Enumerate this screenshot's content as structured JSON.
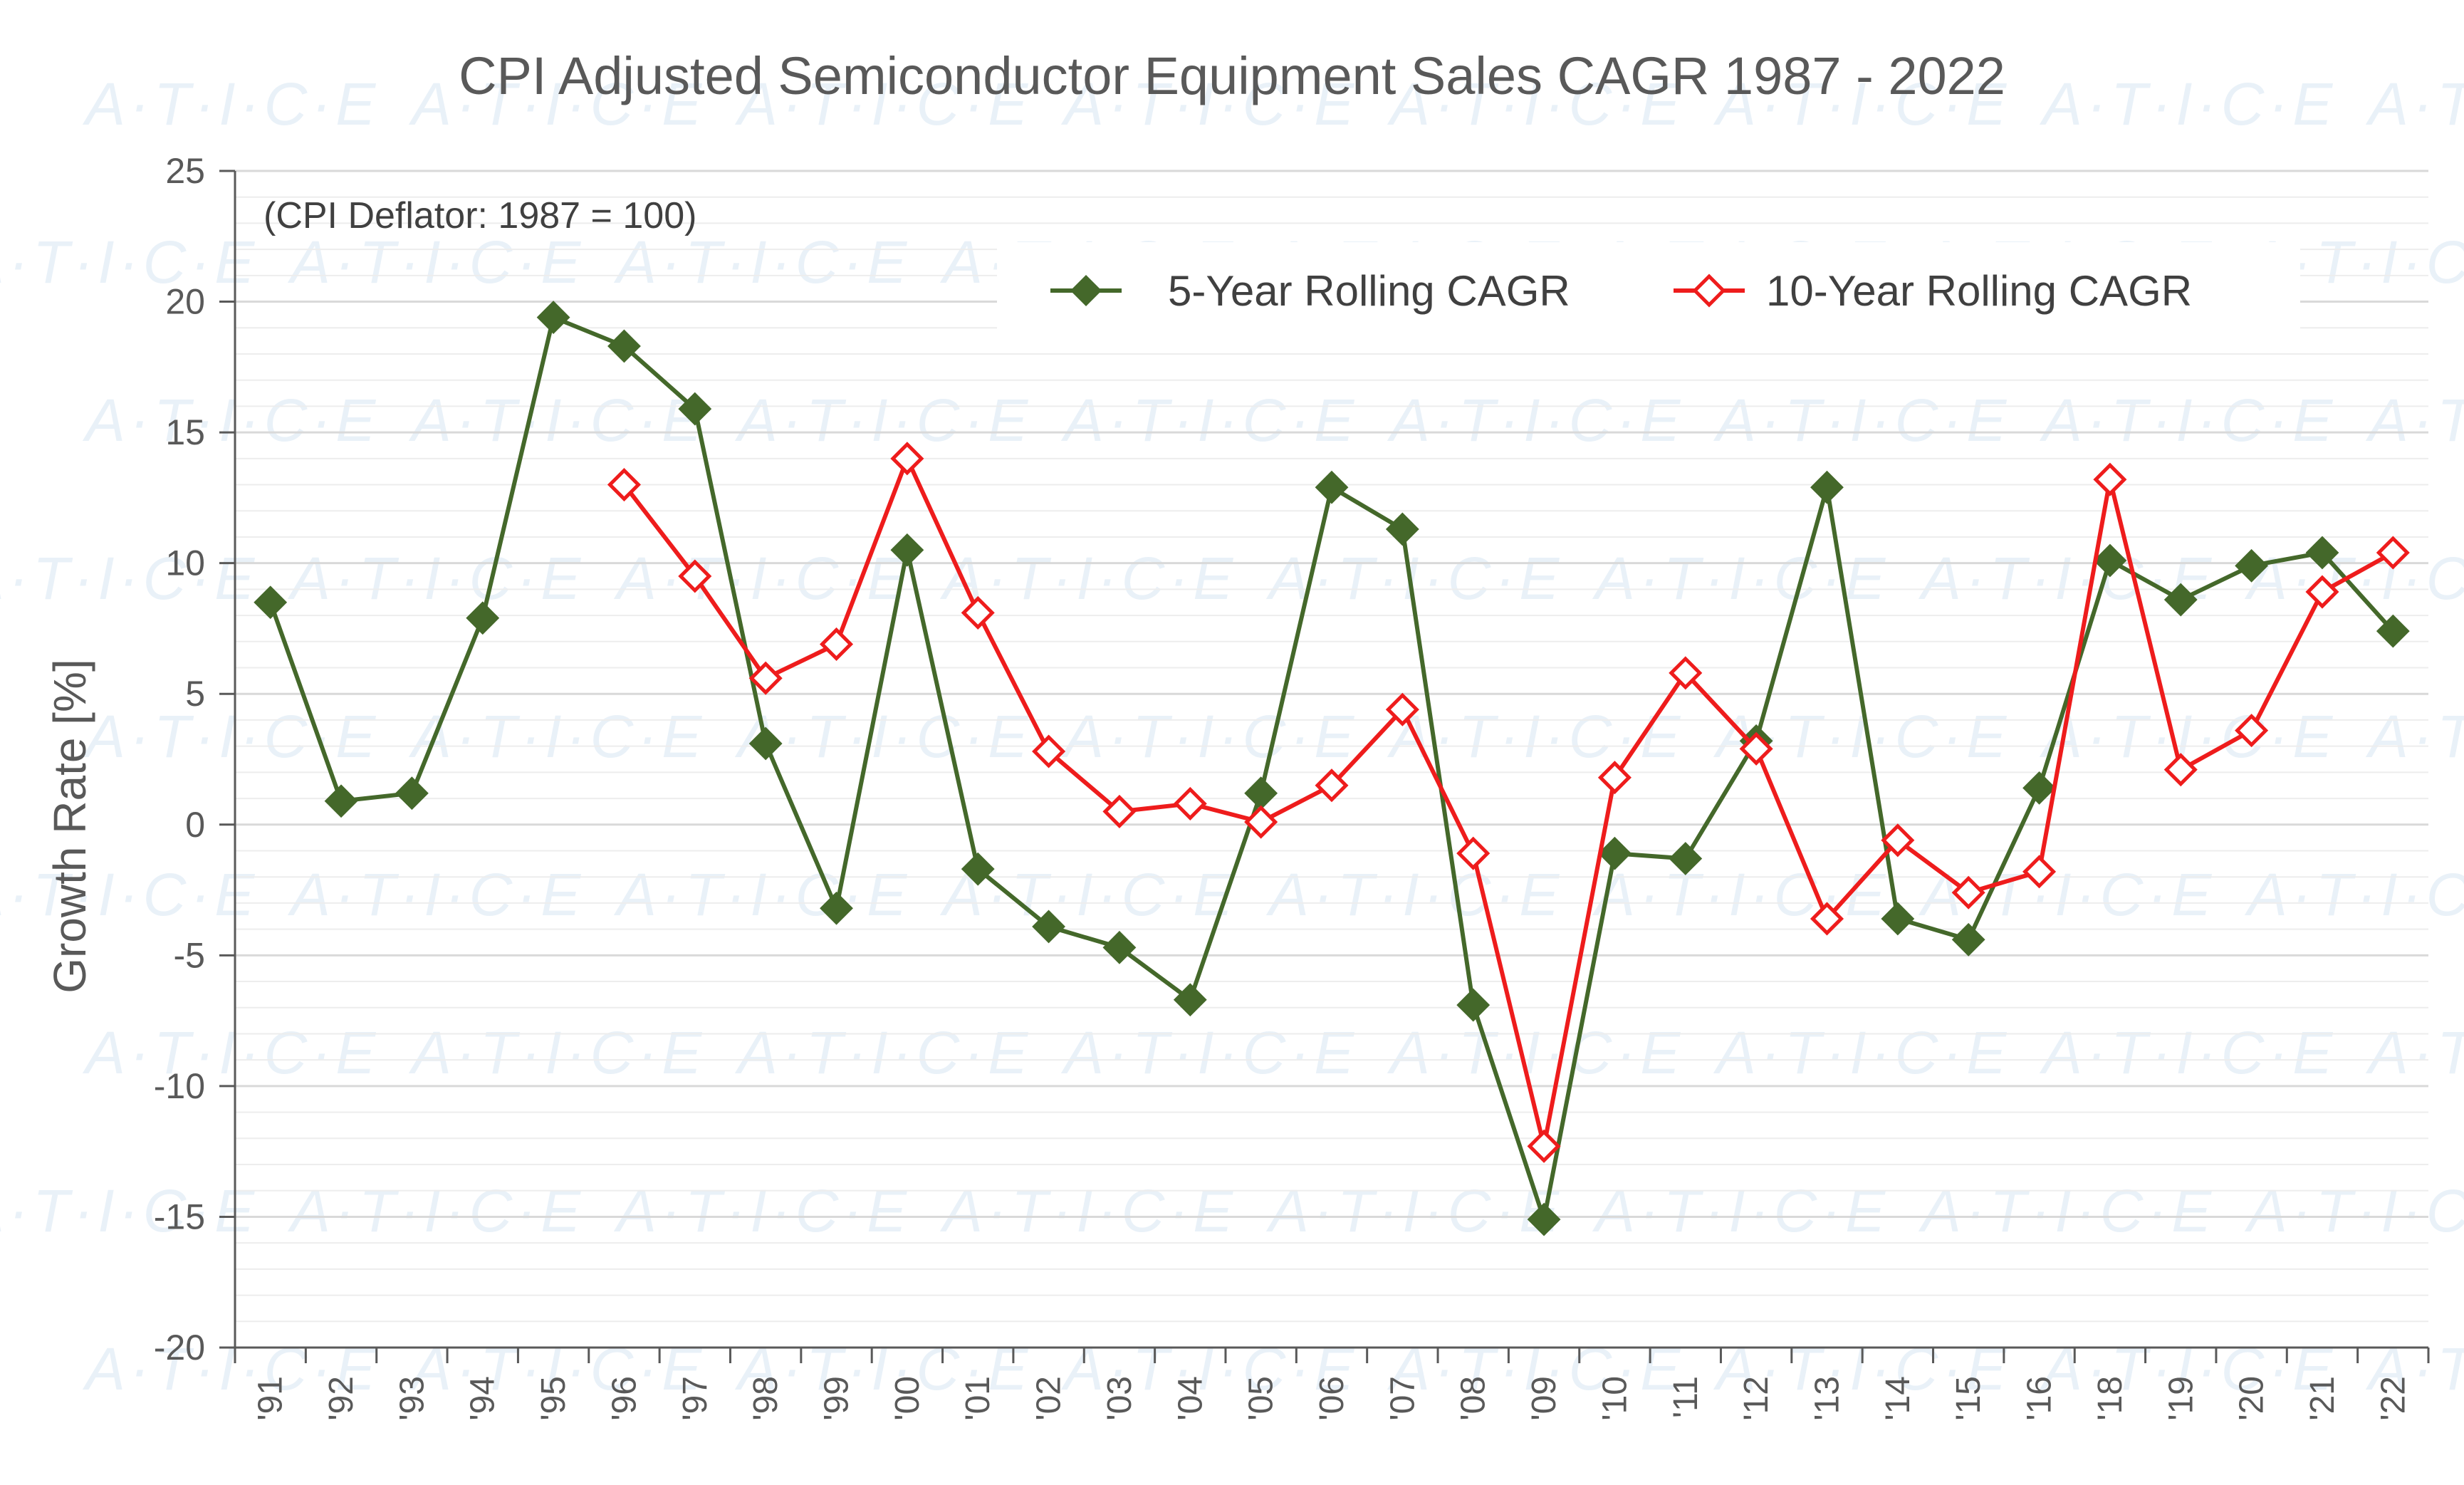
{
  "chart_data": {
    "type": "line",
    "title": "CPI Adjusted Semiconductor Equipment Sales CAGR 1987 - 2022",
    "annotation": "(CPI Deflator:  1987 = 100)",
    "xlabel": "",
    "ylabel": "Growth Rate [%]",
    "ylim": [
      -20,
      25
    ],
    "yticks": [
      25,
      20,
      15,
      10,
      5,
      0,
      -5,
      -10,
      -15,
      -20
    ],
    "grid": true,
    "legend_position": "top-right",
    "categories": [
      "'91",
      "'92",
      "'93",
      "'94",
      "'95",
      "'96",
      "'97",
      "'98",
      "'99",
      "'00",
      "'01",
      "'02",
      "'03",
      "'04",
      "'05",
      "'06",
      "'07",
      "'08",
      "'09",
      "'10",
      "'11",
      "'12",
      "'13",
      "'14",
      "'15",
      "'16",
      "'18",
      "'19",
      "'20",
      "'21",
      "'22"
    ],
    "series": [
      {
        "name": "5-Year Rolling CAGR",
        "color": "#44682A",
        "marker": "diamond-filled",
        "values": [
          8.5,
          0.9,
          1.2,
          7.9,
          19.4,
          18.3,
          15.9,
          3.1,
          -3.2,
          10.5,
          -1.7,
          -3.9,
          -4.7,
          -6.7,
          1.2,
          12.9,
          11.3,
          -6.9,
          -15.1,
          -1.1,
          -1.3,
          3.2,
          12.9,
          -3.6,
          -4.4,
          1.4,
          10.1,
          8.6,
          9.9,
          10.4,
          7.4
        ]
      },
      {
        "name": "10-Year Rolling CAGR",
        "color": "#EE1C1C",
        "marker": "diamond-open",
        "values": [
          null,
          null,
          null,
          null,
          null,
          13.0,
          9.5,
          5.6,
          6.9,
          14.0,
          8.1,
          2.8,
          0.5,
          0.8,
          0.1,
          1.5,
          4.4,
          -1.1,
          -12.3,
          1.8,
          5.8,
          2.9,
          -3.6,
          -0.6,
          -2.6,
          -1.8,
          13.2,
          2.1,
          3.6,
          8.9,
          10.4
        ]
      }
    ],
    "watermark": "A·T·I·C·E"
  }
}
